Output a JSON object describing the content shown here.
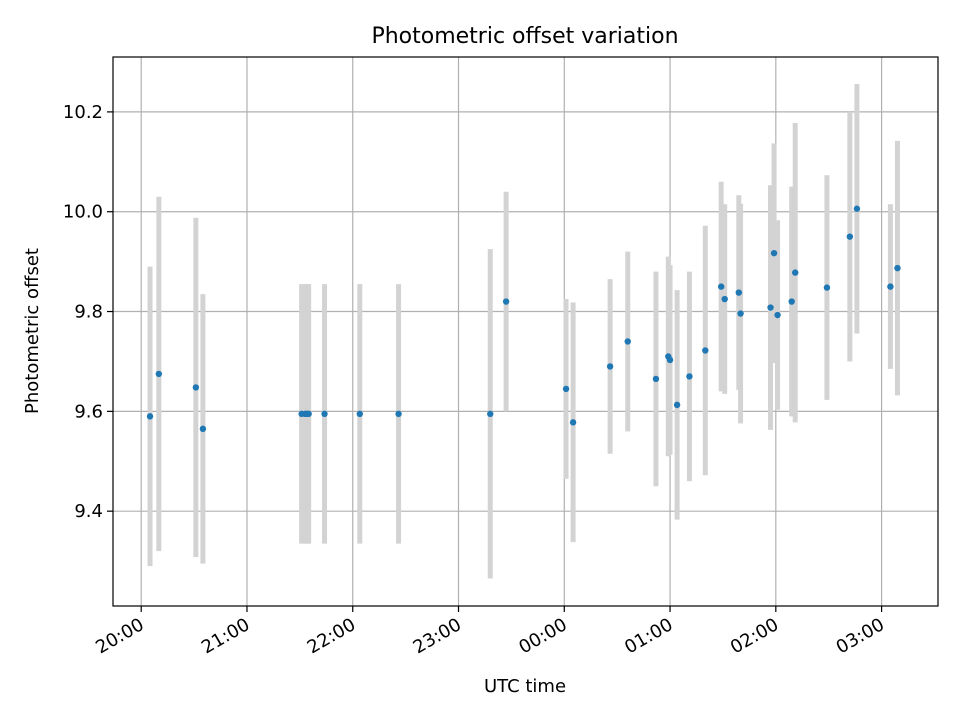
{
  "chart_data": {
    "type": "scatter",
    "title": "Photometric offset variation",
    "xlabel": "UTC time",
    "ylabel": "Photometric offset",
    "x_axis_kind": "time",
    "x_tick_labels": [
      "20:00",
      "21:00",
      "22:00",
      "23:00",
      "00:00",
      "01:00",
      "02:00",
      "03:00"
    ],
    "xlim": [
      "19:44",
      "03:32"
    ],
    "ylim": [
      9.21,
      10.31
    ],
    "y_ticks": [
      9.4,
      9.6,
      9.8,
      10.0,
      10.2
    ],
    "y_tick_labels": [
      "9.4",
      "9.6",
      "9.8",
      "10.0",
      "10.2"
    ],
    "grid": true,
    "colors": {
      "point": "#1f77b4",
      "errorbar": "#d3d3d3",
      "grid": "#b0b0b0"
    },
    "points": [
      {
        "time": "20:05",
        "y": 9.59,
        "err": 0.3
      },
      {
        "time": "20:10",
        "y": 9.675,
        "err": 0.355
      },
      {
        "time": "20:31",
        "y": 9.648,
        "err": 0.34
      },
      {
        "time": "20:35",
        "y": 9.565,
        "err": 0.27
      },
      {
        "time": "21:31",
        "y": 9.595,
        "err": 0.26
      },
      {
        "time": "21:33",
        "y": 9.595,
        "err": 0.26
      },
      {
        "time": "21:34",
        "y": 9.595,
        "err": 0.26
      },
      {
        "time": "21:35",
        "y": 9.595,
        "err": 0.26
      },
      {
        "time": "21:44",
        "y": 9.595,
        "err": 0.26
      },
      {
        "time": "22:04",
        "y": 9.595,
        "err": 0.26
      },
      {
        "time": "22:26",
        "y": 9.595,
        "err": 0.26
      },
      {
        "time": "23:18",
        "y": 9.595,
        "err": 0.33
      },
      {
        "time": "23:27",
        "y": 9.82,
        "err": 0.22
      },
      {
        "time": "00:01",
        "y": 9.645,
        "err": 0.18
      },
      {
        "time": "00:05",
        "y": 9.578,
        "err": 0.24
      },
      {
        "time": "00:26",
        "y": 9.69,
        "err": 0.175
      },
      {
        "time": "00:36",
        "y": 9.74,
        "err": 0.18
      },
      {
        "time": "00:52",
        "y": 9.665,
        "err": 0.215
      },
      {
        "time": "00:59",
        "y": 9.71,
        "err": 0.2
      },
      {
        "time": "01:00",
        "y": 9.703,
        "err": 0.19
      },
      {
        "time": "01:04",
        "y": 9.613,
        "err": 0.23
      },
      {
        "time": "01:11",
        "y": 9.67,
        "err": 0.21
      },
      {
        "time": "01:20",
        "y": 9.722,
        "err": 0.25
      },
      {
        "time": "01:29",
        "y": 9.85,
        "err": 0.21
      },
      {
        "time": "01:31",
        "y": 9.825,
        "err": 0.19
      },
      {
        "time": "01:39",
        "y": 9.838,
        "err": 0.195
      },
      {
        "time": "01:40",
        "y": 9.796,
        "err": 0.22
      },
      {
        "time": "01:57",
        "y": 9.808,
        "err": 0.245
      },
      {
        "time": "01:59",
        "y": 9.917,
        "err": 0.22
      },
      {
        "time": "02:01",
        "y": 9.793,
        "err": 0.19
      },
      {
        "time": "02:09",
        "y": 9.82,
        "err": 0.23
      },
      {
        "time": "02:11",
        "y": 9.878,
        "err": 0.3
      },
      {
        "time": "02:29",
        "y": 9.848,
        "err": 0.225
      },
      {
        "time": "02:42",
        "y": 9.95,
        "err": 0.25
      },
      {
        "time": "02:46",
        "y": 10.006,
        "err": 0.25
      },
      {
        "time": "03:05",
        "y": 9.85,
        "err": 0.165
      },
      {
        "time": "03:09",
        "y": 9.887,
        "err": 0.255
      }
    ]
  }
}
